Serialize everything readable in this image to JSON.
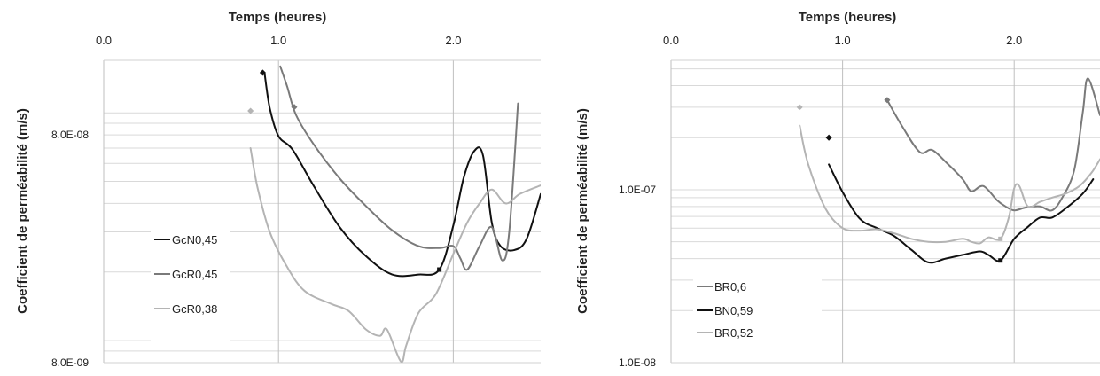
{
  "chart_data": [
    {
      "type": "line",
      "xlabel": "Temps (heures)",
      "ylabel": "Coefficient de perméabilité (m/s)",
      "x_ticks": [
        "0.0",
        "1.0",
        "2.0"
      ],
      "xlim": [
        0.0,
        2.5
      ],
      "y_scale": "log",
      "ylim": [
        8e-09,
        1.7e-07
      ],
      "y_ticks": [
        {
          "value": 8e-08,
          "label": "8.0E-08"
        },
        {
          "value": 8e-09,
          "label": "8.0E-09"
        }
      ],
      "grid": true,
      "legend": "left",
      "series": [
        {
          "name": "GcN0,45",
          "color": "#111111",
          "start_marker": {
            "x": 0.91,
            "y": 1.5e-07
          },
          "end_marker": {
            "x": 1.92,
            "y": 2.05e-08
          },
          "points": [
            [
              0.92,
              1.5e-07
            ],
            [
              0.95,
              1.05e-07
            ],
            [
              1.0,
              7.9e-08
            ],
            [
              1.08,
              6.9e-08
            ],
            [
              1.2,
              4.8e-08
            ],
            [
              1.35,
              3.15e-08
            ],
            [
              1.5,
              2.35e-08
            ],
            [
              1.65,
              1.95e-08
            ],
            [
              1.8,
              1.95e-08
            ],
            [
              1.92,
              2.05e-08
            ],
            [
              2.0,
              3.2e-08
            ],
            [
              2.06,
              5.2e-08
            ],
            [
              2.12,
              6.8e-08
            ],
            [
              2.17,
              6.5e-08
            ],
            [
              2.22,
              3.3e-08
            ],
            [
              2.27,
              2.6e-08
            ],
            [
              2.35,
              2.5e-08
            ],
            [
              2.42,
              2.8e-08
            ],
            [
              2.5,
              4.4e-08
            ]
          ]
        },
        {
          "name": "GcR0,45",
          "color": "#7a7a7a",
          "start_marker": {
            "x": 1.09,
            "y": 1.06e-07
          },
          "points": [
            [
              1.01,
              1.6e-07
            ],
            [
              1.05,
              1.3e-07
            ],
            [
              1.1,
              9.8e-08
            ],
            [
              1.2,
              7.3e-08
            ],
            [
              1.35,
              5.15e-08
            ],
            [
              1.5,
              3.9e-08
            ],
            [
              1.65,
              3.05e-08
            ],
            [
              1.8,
              2.6e-08
            ],
            [
              1.92,
              2.55e-08
            ],
            [
              2.0,
              2.6e-08
            ],
            [
              2.04,
              2.3e-08
            ],
            [
              2.08,
              2.05e-08
            ],
            [
              2.15,
              2.6e-08
            ],
            [
              2.22,
              3.15e-08
            ],
            [
              2.28,
              2.25e-08
            ],
            [
              2.32,
              3e-08
            ],
            [
              2.37,
              1.1e-07
            ]
          ]
        },
        {
          "name": "GcR0,38",
          "color": "#b4b4b4",
          "start_marker": {
            "x": 0.84,
            "y": 1.02e-07
          },
          "points": [
            [
              0.84,
              7e-08
            ],
            [
              0.88,
              4.7e-08
            ],
            [
              0.95,
              3e-08
            ],
            [
              1.05,
              2.1e-08
            ],
            [
              1.15,
              1.65e-08
            ],
            [
              1.3,
              1.45e-08
            ],
            [
              1.4,
              1.35e-08
            ],
            [
              1.5,
              1.12e-08
            ],
            [
              1.58,
              1.05e-08
            ],
            [
              1.62,
              1.12e-08
            ],
            [
              1.7,
              8.1e-09
            ],
            [
              1.73,
              9.5e-09
            ],
            [
              1.8,
              1.32e-08
            ],
            [
              1.9,
              1.6e-08
            ],
            [
              2.0,
              2.4e-08
            ],
            [
              2.08,
              3.3e-08
            ],
            [
              2.15,
              4e-08
            ],
            [
              2.22,
              4.6e-08
            ],
            [
              2.3,
              4e-08
            ],
            [
              2.38,
              4.4e-08
            ],
            [
              2.5,
              4.8e-08
            ]
          ]
        }
      ]
    },
    {
      "type": "line",
      "xlabel": "Temps (heures)",
      "ylabel": "Coefficient de perméabilité (m/s)",
      "x_ticks": [
        "0.0",
        "1.0",
        "2.0"
      ],
      "xlim": [
        0.0,
        2.5
      ],
      "y_scale": "log",
      "ylim": [
        1e-08,
        5.6e-07
      ],
      "y_ticks": [
        {
          "value": 1e-07,
          "label": "1.0E-07"
        },
        {
          "value": 1e-08,
          "label": "1.0E-08"
        }
      ],
      "grid": true,
      "legend": "bottom-left",
      "series": [
        {
          "name": "BR0,6",
          "color": "#7a7a7a",
          "start_marker": {
            "x": 1.26,
            "y": 3.3e-07
          },
          "points": [
            [
              1.26,
              3.3e-07
            ],
            [
              1.35,
              2.3e-07
            ],
            [
              1.45,
              1.65e-07
            ],
            [
              1.52,
              1.7e-07
            ],
            [
              1.6,
              1.45e-07
            ],
            [
              1.7,
              1.15e-07
            ],
            [
              1.75,
              9.8e-08
            ],
            [
              1.82,
              1.05e-07
            ],
            [
              1.9,
              8.7e-08
            ],
            [
              1.95,
              8e-08
            ],
            [
              2.0,
              7.6e-08
            ],
            [
              2.07,
              7.9e-08
            ],
            [
              2.15,
              8e-08
            ],
            [
              2.22,
              7.6e-08
            ],
            [
              2.28,
              9e-08
            ],
            [
              2.35,
              1.3e-07
            ],
            [
              2.4,
              2.8e-07
            ],
            [
              2.43,
              4.4e-07
            ],
            [
              2.5,
              2.7e-07
            ]
          ]
        },
        {
          "name": "BN0,59",
          "color": "#111111",
          "start_marker": {
            "x": 0.92,
            "y": 2e-07
          },
          "end_marker": {
            "x": 1.92,
            "y": 3.9e-08
          },
          "points": [
            [
              0.92,
              1.4e-07
            ],
            [
              1.0,
              9.7e-08
            ],
            [
              1.1,
              6.8e-08
            ],
            [
              1.2,
              6e-08
            ],
            [
              1.3,
              5.4e-08
            ],
            [
              1.4,
              4.5e-08
            ],
            [
              1.5,
              3.8e-08
            ],
            [
              1.6,
              4e-08
            ],
            [
              1.7,
              4.2e-08
            ],
            [
              1.8,
              4.4e-08
            ],
            [
              1.85,
              4.2e-08
            ],
            [
              1.92,
              3.9e-08
            ],
            [
              2.0,
              5.2e-08
            ],
            [
              2.08,
              6.1e-08
            ],
            [
              2.15,
              6.9e-08
            ],
            [
              2.22,
              6.9e-08
            ],
            [
              2.3,
              7.8e-08
            ],
            [
              2.4,
              9.5e-08
            ],
            [
              2.46,
              1.15e-07
            ]
          ]
        },
        {
          "name": "BR0,52",
          "color": "#b4b4b4",
          "start_marker": {
            "x": 0.75,
            "y": 3e-07
          },
          "end_marker": {
            "x": 1.92,
            "y": 5.2e-08
          },
          "points": [
            [
              0.75,
              2.35e-07
            ],
            [
              0.8,
              1.4e-07
            ],
            [
              0.9,
              7.8e-08
            ],
            [
              1.0,
              6e-08
            ],
            [
              1.1,
              5.8e-08
            ],
            [
              1.2,
              5.9e-08
            ],
            [
              1.3,
              5.6e-08
            ],
            [
              1.4,
              5.2e-08
            ],
            [
              1.5,
              5e-08
            ],
            [
              1.6,
              5e-08
            ],
            [
              1.7,
              5.2e-08
            ],
            [
              1.75,
              5e-08
            ],
            [
              1.8,
              4.9e-08
            ],
            [
              1.85,
              5.3e-08
            ],
            [
              1.92,
              5.2e-08
            ],
            [
              1.97,
              7e-08
            ],
            [
              2.0,
              1.02e-07
            ],
            [
              2.03,
              1.05e-07
            ],
            [
              2.08,
              8e-08
            ],
            [
              2.15,
              8.5e-08
            ],
            [
              2.22,
              9e-08
            ],
            [
              2.3,
              9.5e-08
            ],
            [
              2.38,
              1.05e-07
            ],
            [
              2.45,
              1.25e-07
            ],
            [
              2.5,
              1.5e-07
            ]
          ]
        }
      ]
    }
  ]
}
